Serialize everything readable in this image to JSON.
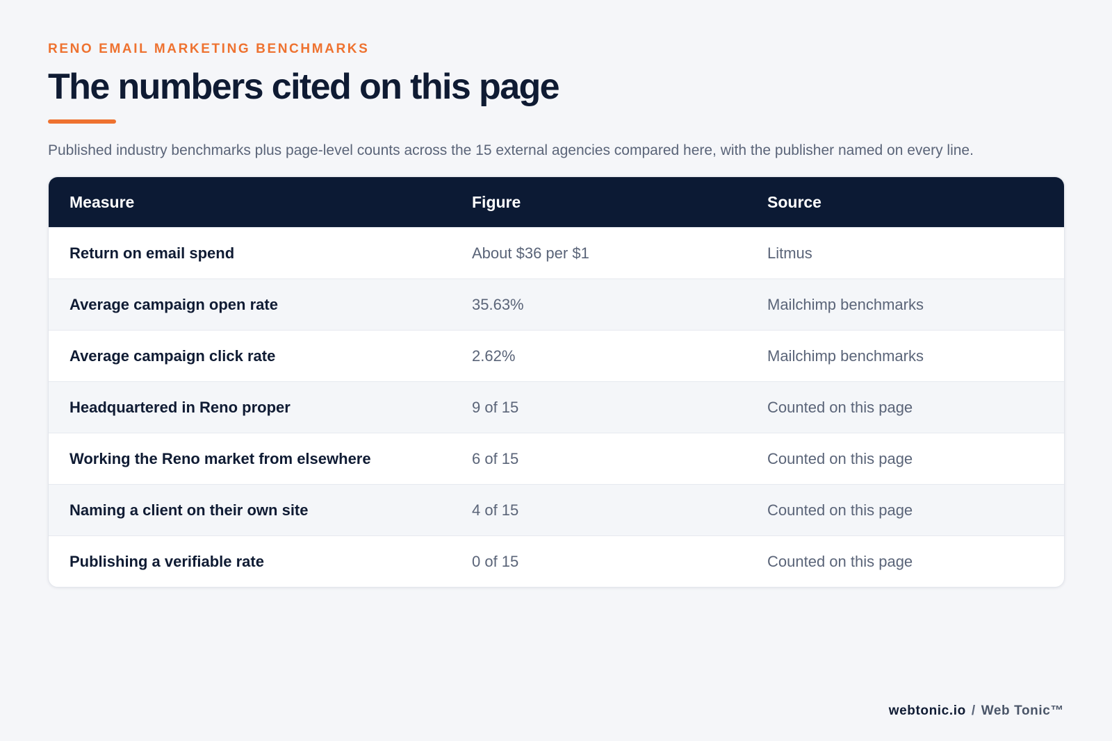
{
  "header": {
    "eyebrow": "RENO EMAIL MARKETING BENCHMARKS",
    "title": "The numbers cited on this page",
    "subtitle": "Published industry benchmarks plus page-level counts across the 15 external agencies compared here, with the publisher named on every line."
  },
  "table": {
    "columns": [
      "Measure",
      "Figure",
      "Source"
    ],
    "rows": [
      {
        "measure": "Return on email spend",
        "figure": "About $36 per $1",
        "source": "Litmus"
      },
      {
        "measure": "Average campaign open rate",
        "figure": "35.63%",
        "source": "Mailchimp benchmarks"
      },
      {
        "measure": "Average campaign click rate",
        "figure": "2.62%",
        "source": "Mailchimp benchmarks"
      },
      {
        "measure": "Headquartered in Reno proper",
        "figure": "9 of 15",
        "source": "Counted on this page"
      },
      {
        "measure": "Working the Reno market from elsewhere",
        "figure": "6 of 15",
        "source": "Counted on this page"
      },
      {
        "measure": "Naming a client on their own site",
        "figure": "4 of 15",
        "source": "Counted on this page"
      },
      {
        "measure": "Publishing a verifiable rate",
        "figure": "0 of 15",
        "source": "Counted on this page"
      }
    ]
  },
  "footer": {
    "domain": "webtonic.io",
    "separator": "/",
    "brand": "Web Tonic™"
  },
  "colors": {
    "accent": "#ee7230",
    "navy": "#0c1a34",
    "background": "#f5f6f9"
  }
}
